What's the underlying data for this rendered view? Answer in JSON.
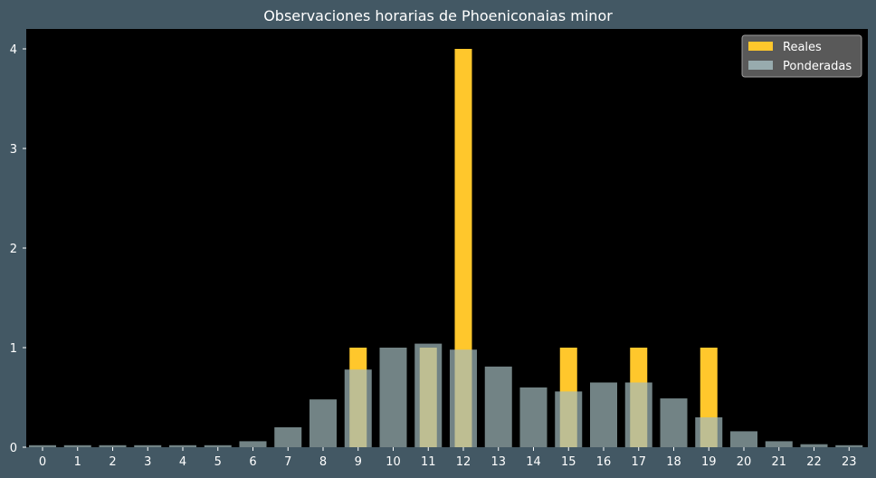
{
  "chart_data": {
    "type": "bar",
    "title": "Observaciones horarias de Phoeniconaias minor",
    "xlabel": "",
    "ylabel": "",
    "ylim": [
      0,
      4.2
    ],
    "yticks": [
      0,
      1,
      2,
      3,
      4
    ],
    "categories": [
      "0",
      "1",
      "2",
      "3",
      "4",
      "5",
      "6",
      "7",
      "8",
      "9",
      "10",
      "11",
      "12",
      "13",
      "14",
      "15",
      "16",
      "17",
      "18",
      "19",
      "20",
      "21",
      "22",
      "23"
    ],
    "legend_position": "top-right",
    "series": [
      {
        "name": "Reales",
        "color": "#ffc72c",
        "values": [
          0,
          0,
          0,
          0,
          0,
          0,
          0,
          0,
          0,
          1,
          0,
          1,
          4,
          0,
          0,
          1,
          0,
          1,
          0,
          1,
          0,
          0,
          0,
          0
        ]
      },
      {
        "name": "Ponderadas",
        "color": "#a3babd",
        "opacity": 0.7,
        "values": [
          0.02,
          0.02,
          0.02,
          0.02,
          0.02,
          0.02,
          0.06,
          0.2,
          0.48,
          0.78,
          1.0,
          1.04,
          0.98,
          0.81,
          0.6,
          0.56,
          0.65,
          0.65,
          0.49,
          0.3,
          0.16,
          0.06,
          0.03,
          0.02
        ]
      }
    ]
  }
}
